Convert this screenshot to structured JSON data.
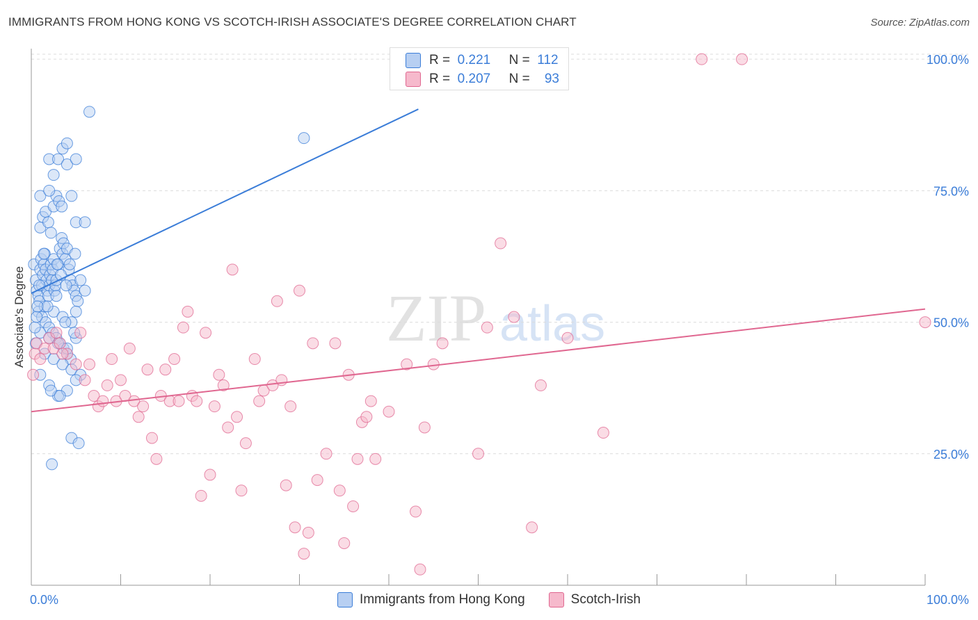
{
  "title": "IMMIGRANTS FROM HONG KONG VS SCOTCH-IRISH ASSOCIATE'S DEGREE CORRELATION CHART",
  "source": "Source: ZipAtlas.com",
  "watermark": {
    "zip": "ZIP",
    "atlas": "atlas"
  },
  "colors": {
    "blue": "#3b7dd8",
    "blue_fill": "#b7cff2",
    "pink": "#e06790",
    "pink_fill": "#f6b9cc",
    "grid": "#dcdcdc"
  },
  "legend_top": {
    "rows": [
      {
        "r_label": "R =",
        "r_value": "0.221",
        "n_label": "N =",
        "n_value": "112"
      },
      {
        "r_label": "R =",
        "r_value": "0.207",
        "n_label": "N =",
        "n_value": "93"
      }
    ]
  },
  "legend_bottom": {
    "series1": "Immigrants from Hong Kong",
    "series2": "Scotch-Irish"
  },
  "chart_data": {
    "type": "scatter",
    "xlabel": "",
    "ylabel": "Associate's Degree",
    "xlim": [
      0,
      100
    ],
    "ylim": [
      0,
      102
    ],
    "x_tick_labels": [
      "0.0%",
      "100.0%"
    ],
    "y_ticks": [
      25,
      50,
      75,
      100
    ],
    "y_tick_labels": [
      "25.0%",
      "50.0%",
      "75.0%",
      "100.0%"
    ],
    "grid": "horizontal dashed",
    "legend_placement": "top-center and bottom",
    "series": [
      {
        "name": "Immigrants from Hong Kong",
        "color": "#3b7dd8",
        "trend": {
          "x": [
            0,
            43.3
          ],
          "y": [
            55.5,
            90.5
          ]
        },
        "points": [
          [
            0.3,
            61
          ],
          [
            0.5,
            58
          ],
          [
            0.6,
            56
          ],
          [
            0.8,
            55
          ],
          [
            0.9,
            54
          ],
          [
            1.0,
            60
          ],
          [
            1.1,
            62
          ],
          [
            1.2,
            57
          ],
          [
            1.3,
            59
          ],
          [
            1.4,
            61
          ],
          [
            1.5,
            63
          ],
          [
            1.6,
            60
          ],
          [
            1.7,
            58
          ],
          [
            1.8,
            56
          ],
          [
            1.9,
            55
          ],
          [
            2.0,
            57
          ],
          [
            2.1,
            59
          ],
          [
            2.2,
            61
          ],
          [
            2.3,
            58
          ],
          [
            2.4,
            60
          ],
          [
            2.5,
            62
          ],
          [
            2.6,
            56
          ],
          [
            2.7,
            57
          ],
          [
            2.8,
            58
          ],
          [
            3.0,
            61
          ],
          [
            3.2,
            64
          ],
          [
            3.4,
            66
          ],
          [
            3.5,
            63
          ],
          [
            3.6,
            65
          ],
          [
            3.8,
            62
          ],
          [
            4.0,
            64
          ],
          [
            4.2,
            60
          ],
          [
            4.4,
            58
          ],
          [
            4.6,
            57
          ],
          [
            4.8,
            56
          ],
          [
            5.0,
            55
          ],
          [
            5.2,
            54
          ],
          [
            1.0,
            68
          ],
          [
            1.3,
            70
          ],
          [
            1.6,
            71
          ],
          [
            1.9,
            69
          ],
          [
            2.2,
            67
          ],
          [
            2.5,
            72
          ],
          [
            2.8,
            74
          ],
          [
            3.1,
            73
          ],
          [
            3.4,
            72
          ],
          [
            1.0,
            74
          ],
          [
            2.0,
            75
          ],
          [
            4.5,
            74
          ],
          [
            5.0,
            69
          ],
          [
            6.0,
            69
          ],
          [
            2.5,
            78
          ],
          [
            2.0,
            81
          ],
          [
            3.0,
            81
          ],
          [
            3.5,
            83
          ],
          [
            4.0,
            84
          ],
          [
            4.0,
            80
          ],
          [
            5.0,
            81
          ],
          [
            6.5,
            90
          ],
          [
            30.5,
            85
          ],
          [
            0.8,
            52
          ],
          [
            1.2,
            51
          ],
          [
            1.6,
            50
          ],
          [
            2.0,
            49
          ],
          [
            2.4,
            48
          ],
          [
            2.8,
            47
          ],
          [
            3.2,
            46
          ],
          [
            3.6,
            45
          ],
          [
            4.0,
            44
          ],
          [
            4.4,
            43
          ],
          [
            1.5,
            53
          ],
          [
            2.5,
            52
          ],
          [
            3.5,
            51
          ],
          [
            4.5,
            50
          ],
          [
            1.0,
            48
          ],
          [
            2.0,
            47
          ],
          [
            3.0,
            46
          ],
          [
            4.0,
            45
          ],
          [
            5.0,
            47
          ],
          [
            0.5,
            46
          ],
          [
            1.5,
            44
          ],
          [
            2.5,
            43
          ],
          [
            3.5,
            42
          ],
          [
            4.5,
            41
          ],
          [
            5.5,
            40
          ],
          [
            1.0,
            40
          ],
          [
            2.0,
            38
          ],
          [
            3.0,
            36
          ],
          [
            4.0,
            37
          ],
          [
            5.0,
            39
          ],
          [
            2.2,
            37
          ],
          [
            3.2,
            36
          ],
          [
            4.5,
            28
          ],
          [
            5.3,
            27
          ],
          [
            2.3,
            23
          ],
          [
            6.0,
            56
          ],
          [
            5.5,
            58
          ],
          [
            5.0,
            52
          ],
          [
            4.8,
            48
          ],
          [
            3.8,
            50
          ],
          [
            2.8,
            55
          ],
          [
            1.8,
            53
          ],
          [
            0.9,
            57
          ],
          [
            1.4,
            63
          ],
          [
            2.9,
            61
          ],
          [
            3.3,
            59
          ],
          [
            3.9,
            57
          ],
          [
            4.3,
            61
          ],
          [
            4.9,
            63
          ],
          [
            0.4,
            49
          ],
          [
            0.6,
            51
          ],
          [
            0.7,
            53
          ]
        ]
      },
      {
        "name": "Scotch-Irish",
        "color": "#e06790",
        "trend": {
          "x": [
            0,
            100
          ],
          "y": [
            33,
            52.5
          ]
        },
        "points": [
          [
            0.2,
            40
          ],
          [
            0.4,
            44
          ],
          [
            0.6,
            46
          ],
          [
            1.5,
            45
          ],
          [
            2.0,
            47
          ],
          [
            2.5,
            45
          ],
          [
            3.2,
            46
          ],
          [
            4.0,
            44
          ],
          [
            5.0,
            42
          ],
          [
            5.5,
            48
          ],
          [
            6.0,
            39
          ],
          [
            7.0,
            36
          ],
          [
            7.5,
            34
          ],
          [
            8.0,
            35
          ],
          [
            8.5,
            38
          ],
          [
            9.0,
            43
          ],
          [
            9.5,
            35
          ],
          [
            10.0,
            39
          ],
          [
            10.5,
            36
          ],
          [
            11.0,
            45
          ],
          [
            11.5,
            35
          ],
          [
            12.0,
            32
          ],
          [
            12.5,
            34
          ],
          [
            13.0,
            41
          ],
          [
            13.5,
            28
          ],
          [
            14.0,
            24
          ],
          [
            14.5,
            36
          ],
          [
            15.0,
            41
          ],
          [
            15.5,
            35
          ],
          [
            16.0,
            43
          ],
          [
            16.5,
            35
          ],
          [
            17.0,
            49
          ],
          [
            17.5,
            52
          ],
          [
            18.0,
            36
          ],
          [
            18.5,
            35
          ],
          [
            19.0,
            17
          ],
          [
            19.5,
            48
          ],
          [
            20.0,
            21
          ],
          [
            20.5,
            34
          ],
          [
            21.0,
            40
          ],
          [
            21.5,
            38
          ],
          [
            22.0,
            30
          ],
          [
            22.5,
            60
          ],
          [
            23.0,
            32
          ],
          [
            23.5,
            18
          ],
          [
            24.0,
            27
          ],
          [
            25.0,
            43
          ],
          [
            25.5,
            35
          ],
          [
            26.0,
            37
          ],
          [
            27.0,
            38
          ],
          [
            27.5,
            54
          ],
          [
            28.0,
            39
          ],
          [
            28.5,
            19
          ],
          [
            29.0,
            34
          ],
          [
            29.5,
            11
          ],
          [
            30.0,
            56
          ],
          [
            30.5,
            6
          ],
          [
            31.0,
            10
          ],
          [
            31.5,
            46
          ],
          [
            32.0,
            20
          ],
          [
            33.0,
            25
          ],
          [
            34.0,
            46
          ],
          [
            34.5,
            18
          ],
          [
            35.0,
            8
          ],
          [
            35.5,
            40
          ],
          [
            36.0,
            15
          ],
          [
            36.5,
            24
          ],
          [
            37.0,
            31
          ],
          [
            37.5,
            32
          ],
          [
            38.0,
            35
          ],
          [
            38.5,
            24
          ],
          [
            40.0,
            33
          ],
          [
            42.0,
            42
          ],
          [
            43.0,
            14
          ],
          [
            43.5,
            3
          ],
          [
            44.0,
            30
          ],
          [
            45.0,
            42
          ],
          [
            46.0,
            46
          ],
          [
            50.0,
            25
          ],
          [
            51.0,
            49
          ],
          [
            52.5,
            65
          ],
          [
            54.0,
            51
          ],
          [
            56.0,
            11
          ],
          [
            57.0,
            38
          ],
          [
            60.0,
            47
          ],
          [
            64.0,
            29
          ],
          [
            75.0,
            100
          ],
          [
            79.5,
            100
          ],
          [
            100.0,
            50
          ],
          [
            2.8,
            48
          ],
          [
            1.0,
            43
          ],
          [
            3.5,
            44
          ],
          [
            6.5,
            42
          ]
        ]
      }
    ]
  }
}
